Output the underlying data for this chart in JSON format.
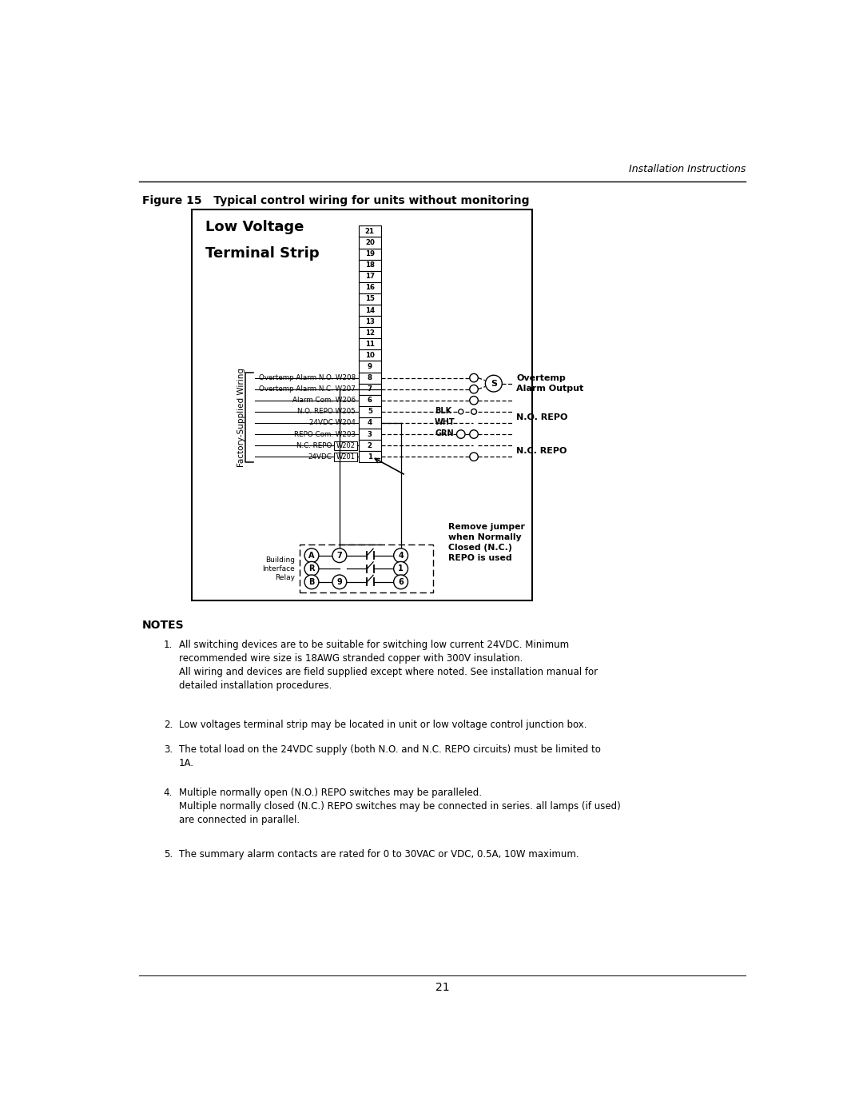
{
  "page_title": "Installation Instructions",
  "figure_caption": "Figure 15   Typical control wiring for units without monitoring",
  "diagram_title_line1": "Low Voltage",
  "diagram_title_line2": "Terminal Strip",
  "terminal_numbers": [
    21,
    20,
    19,
    18,
    17,
    16,
    15,
    14,
    13,
    12,
    11,
    10,
    9,
    8,
    7,
    6,
    5,
    4,
    3,
    2,
    1
  ],
  "wire_labels": [
    {
      "terminal": 8,
      "label": "Overtemp Alarm N.O. W208"
    },
    {
      "terminal": 7,
      "label": "Overtemp Alarm N.C. W207"
    },
    {
      "terminal": 6,
      "label": "Alarm Com. W206"
    },
    {
      "terminal": 5,
      "label": "N.O. REPO W205"
    },
    {
      "terminal": 4,
      "label": "24VDC W204"
    },
    {
      "terminal": 3,
      "label": "REPO Com. W203"
    },
    {
      "terminal": 2,
      "label": "N.C. REPO|W202"
    },
    {
      "terminal": 1,
      "label": "24VDC|W201"
    }
  ],
  "factory_label": "Factory-Supplied Wiring",
  "building_relay_label": "Building\nInterface\nRelay",
  "relay_note": "Remove jumper\nwhen Normally\nClosed (N.C.)\nREPO is used",
  "notes_title": "NOTES",
  "notes": [
    "All switching devices are to be suitable for switching low current 24VDC. Minimum\nrecommended wire size is 18AWG stranded copper with 300V insulation.\nAll wiring and devices are field supplied except where noted. See installation manual for\ndetailed installation procedures.",
    "Low voltages terminal strip may be located in unit or low voltage control junction box.",
    "The total load on the 24VDC supply (both N.O. and N.C. REPO circuits) must be limited to\n1A.",
    "Multiple normally open (N.O.) REPO switches may be paralleled.\nMultiple normally closed (N.C.) REPO switches may be connected in series. all lamps (if used)\nare connected in parallel.",
    "The summary alarm contacts are rated for 0 to 30VAC or VDC, 0.5A, 10W maximum."
  ],
  "page_number": "21",
  "bg_color": "#ffffff",
  "line_color": "#000000"
}
